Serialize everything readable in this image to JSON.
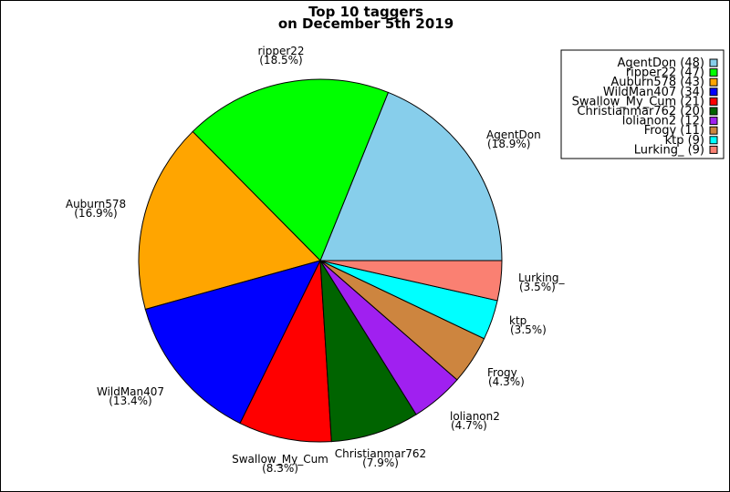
{
  "chart_data": {
    "type": "pie",
    "title": "Top 10 taggers",
    "subtitle": "on December 5th 2019",
    "legend_position": "top-right",
    "slices": [
      {
        "name": "AgentDon",
        "value": 48,
        "percent_label": "(18.9%)",
        "legend_label": "AgentDon (48)",
        "color": "#87CEEB"
      },
      {
        "name": "ripper22",
        "value": 47,
        "percent_label": "(18.5%)",
        "legend_label": "ripper22 (47)",
        "color": "#00FF00"
      },
      {
        "name": "Auburn578",
        "value": 43,
        "percent_label": "(16.9%)",
        "legend_label": "Auburn578 (43)",
        "color": "#FFA500"
      },
      {
        "name": "WildMan407",
        "value": 34,
        "percent_label": "(13.4%)",
        "legend_label": "WildMan407 (34)",
        "color": "#0000FF"
      },
      {
        "name": "Swallow_My_Cum",
        "value": 21,
        "percent_label": "(8.3%)",
        "legend_label": "Swallow_My_Cum (21)",
        "color": "#FF0000"
      },
      {
        "name": "Christianmar762",
        "value": 20,
        "percent_label": "(7.9%)",
        "legend_label": "Christianmar762 (20)",
        "color": "#006400"
      },
      {
        "name": "lolianon2",
        "value": 12,
        "percent_label": "(4.7%)",
        "legend_label": "lolianon2 (12)",
        "color": "#A020F0"
      },
      {
        "name": "Frogy",
        "value": 11,
        "percent_label": "(4.3%)",
        "legend_label": "Frogy (11)",
        "color": "#CD853F"
      },
      {
        "name": "ktp",
        "value": 9,
        "percent_label": "(3.5%)",
        "legend_label": "ktp (9)",
        "color": "#00FFFF"
      },
      {
        "name": "Lurking_",
        "value": 9,
        "percent_label": "(3.5%)",
        "legend_label": "Lurking_ (9)",
        "color": "#FA8072"
      }
    ]
  }
}
